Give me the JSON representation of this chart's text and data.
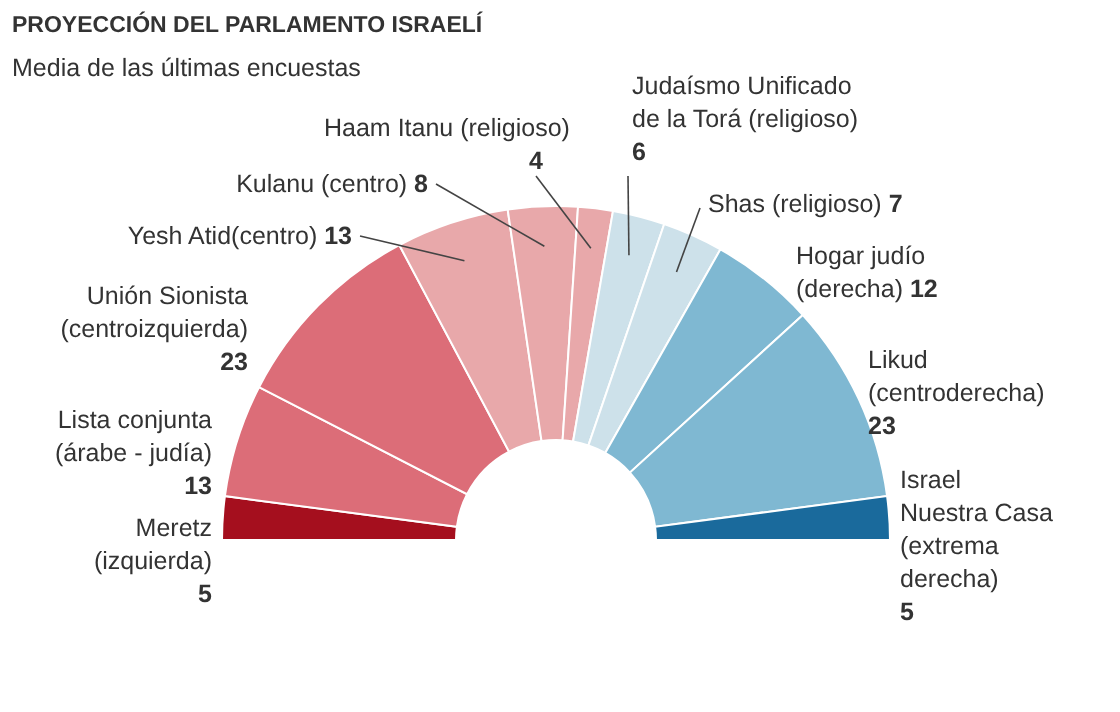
{
  "chart_data": {
    "type": "donut",
    "title": "PROYECCIÓN DEL PARLAMENTO ISRAELÍ",
    "subtitle": "Media de las últimas encuestas",
    "categories": [
      "Meretz\n(izquierda)",
      "Lista conjunta\n(árabe - judía)",
      "Unión Sionista\n(centroizquierda)",
      "Yesh Atid(centro)",
      "Kulanu (centro)",
      "Haam Itanu (religioso)",
      "Judaísmo Unificado\nde la Torá (religioso)",
      "Shas (religioso)",
      "Hogar judío\n(derecha)",
      "Likud\n(centroderecha)",
      "Israel\nNuestra Casa\n(extrema\nderecha)"
    ],
    "values": [
      5,
      13,
      23,
      13,
      8,
      4,
      6,
      7,
      12,
      23,
      5
    ],
    "colors": [
      "#a50f1e",
      "#dc6d78",
      "#dc6d78",
      "#e8a8aa",
      "#e8a8aa",
      "#e8a8aa",
      "#cde1ea",
      "#cde1ea",
      "#7fb8d2",
      "#7fb8d2",
      "#1a6a9c"
    ],
    "data_labels": true
  }
}
